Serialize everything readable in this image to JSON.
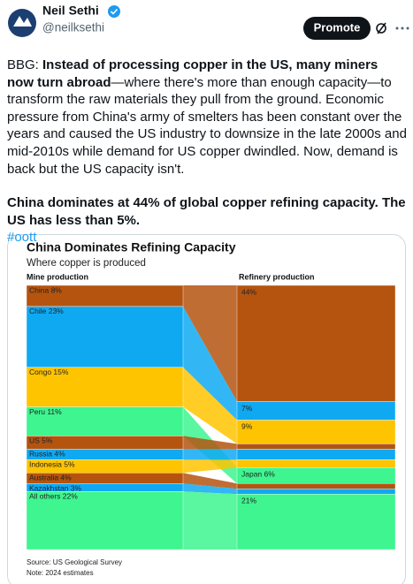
{
  "tweet": {
    "author": "Neil Sethi",
    "handle": "@neilksethi",
    "button": "Promote",
    "paragraphs": [
      [
        {
          "text": "BBG: "
        },
        {
          "text": "Instead of processing copper in the US, many miners now turn abroad",
          "bold": true
        },
        {
          "text": "—where there's more than enough capacity—to transform the raw materials they pull from the ground. Economic pressure from China's army of smelters has been constant over the years and caused the US industry to downsize in the late 2000s and mid-2010s while demand for US copper dwindled. Now, demand is back but the US capacity isn't."
        }
      ],
      [
        {
          "text": "China dominates at 44% of global copper refining capacity. The US has less than 5%.",
          "bold": true
        }
      ]
    ],
    "hashtag": "#oott"
  },
  "chart_data": {
    "type": "sankey",
    "title": "China Dominates Refining Capacity",
    "subtitle": "Where copper is produced",
    "colors": [
      "#b5540f",
      "#0fa9f2",
      "#ffc400",
      "#3ef58f",
      "#b5540f",
      "#0fa9f2",
      "#ffc400",
      "#b5540f",
      "#0fa9f2",
      "#3ef58f"
    ],
    "series": [
      {
        "name": "Mine production",
        "values": [
          8,
          23,
          15,
          11,
          5,
          4,
          5,
          4,
          3,
          22
        ],
        "value_labels": [
          "China 8%",
          "Chile 23%",
          "Congo 15%",
          "Peru 11%",
          "US 5%",
          "Russia 4%",
          "Indonesia 5%",
          "Australia 4%",
          "Kazakhstan 3%",
          "All others 22%"
        ]
      },
      {
        "name": "Refinery production",
        "values": [
          44,
          7,
          9,
          6,
          2,
          4,
          3,
          2,
          2,
          21
        ],
        "value_labels": [
          "44%",
          "7%",
          "9%",
          "Japan 6%",
          null,
          null,
          null,
          null,
          null,
          "21%"
        ]
      }
    ],
    "source": "Source: US Geological Survey",
    "note": "Note: 2024 estimates"
  }
}
